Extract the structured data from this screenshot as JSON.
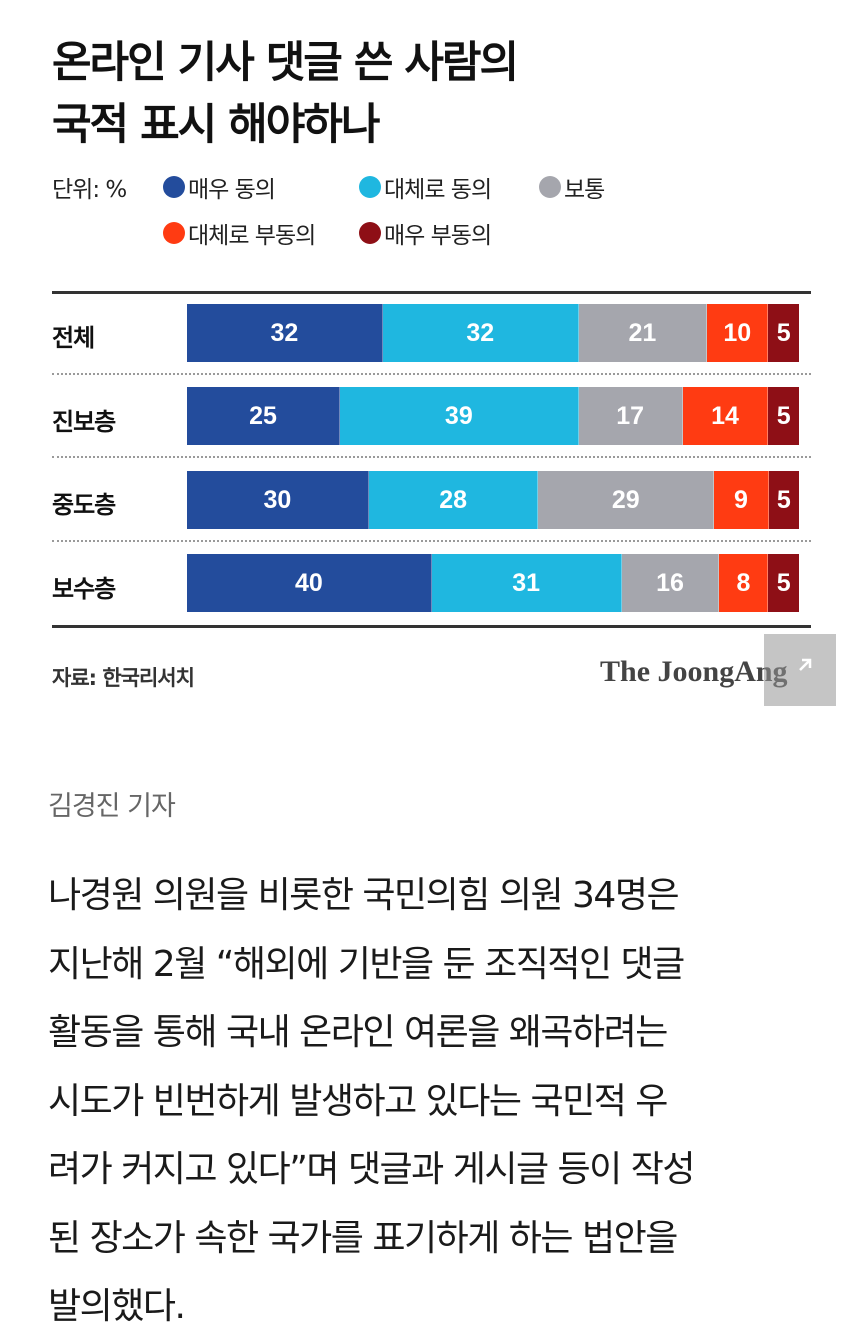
{
  "title_lines": [
    "온라인 기사 댓글 쓴 사람의",
    "국적 표시 해야하나"
  ],
  "unit_label": "단위: %",
  "colors": {
    "very_agree": "#234c9c",
    "mostly_agree": "#1fb7e0",
    "neutral": "#a5a6ad",
    "mostly_disagree": "#ff3b12",
    "very_disagree": "#8e0f16"
  },
  "chart_data": {
    "type": "bar",
    "orientation": "horizontal",
    "stacked": true,
    "categories": [
      "전체",
      "진보층",
      "중도층",
      "보수층"
    ],
    "series": [
      {
        "name": "매우 동의",
        "values": [
          32,
          25,
          30,
          40
        ]
      },
      {
        "name": "대체로 동의",
        "values": [
          32,
          39,
          28,
          31
        ]
      },
      {
        "name": "보통",
        "values": [
          21,
          17,
          29,
          16
        ]
      },
      {
        "name": "대체로 부동의",
        "values": [
          10,
          14,
          9,
          8
        ]
      },
      {
        "name": "매우 부동의",
        "values": [
          5,
          5,
          5,
          5
        ]
      }
    ],
    "xlim": [
      0,
      100
    ],
    "legend": "top",
    "data_labels": true
  },
  "source": "자료: 한국리서치",
  "brand": "The JoongAng",
  "expand_icon": "expand-icon",
  "reporter": "김경진 기자",
  "body_lines": [
    "나경원 의원을 비롯한 국민의힘 의원 34명은",
    "지난해 2월 “해외에 기반을 둔 조직적인 댓글",
    "활동을 통해 국내 온라인 여론을 왜곡하려는",
    "시도가 빈번하게 발생하고 있다는 국민적 우",
    "려가 커지고 있다”며 댓글과 게시글 등이 작성",
    "된 장소가 속한 국가를 표기하게 하는 법안을",
    "발의했다."
  ]
}
